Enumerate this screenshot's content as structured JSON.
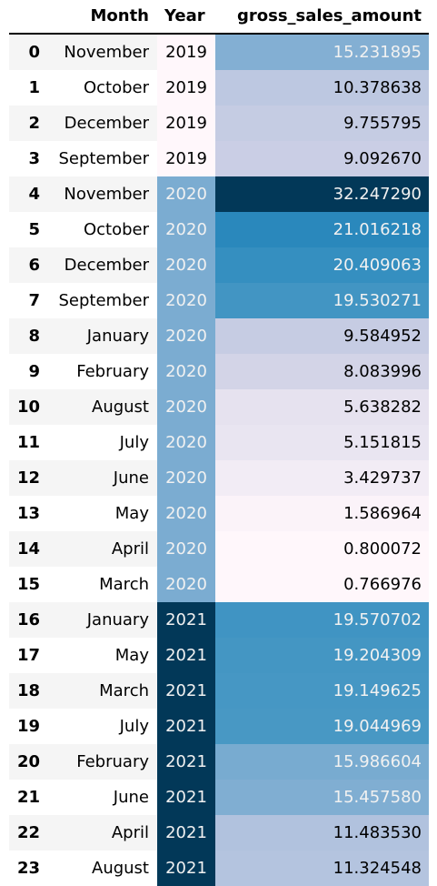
{
  "header": {
    "index": "",
    "month": "Month",
    "year": "Year",
    "gross": "gross_sales_amount"
  },
  "rows": [
    {
      "idx": "0",
      "month": "November",
      "year": "2019",
      "gross": "15.231895",
      "year_bg": "#fff7fb",
      "year_fg": "#000000",
      "gross_bg": "#83afd3",
      "gross_fg": "#f1f1f1"
    },
    {
      "idx": "1",
      "month": "October",
      "year": "2019",
      "gross": "10.378638",
      "year_bg": "#fff7fb",
      "year_fg": "#000000",
      "gross_bg": "#bdc8e1",
      "gross_fg": "#000000"
    },
    {
      "idx": "2",
      "month": "December",
      "year": "2019",
      "gross": "9.755795",
      "year_bg": "#fff7fb",
      "year_fg": "#000000",
      "gross_bg": "#c5cce3",
      "gross_fg": "#000000"
    },
    {
      "idx": "3",
      "month": "September",
      "year": "2019",
      "gross": "9.092670",
      "year_bg": "#fff7fb",
      "year_fg": "#000000",
      "gross_bg": "#cacee5",
      "gross_fg": "#000000"
    },
    {
      "idx": "4",
      "month": "November",
      "year": "2020",
      "gross": "32.247290",
      "year_bg": "#7bacd1",
      "year_fg": "#f1f1f1",
      "gross_bg": "#023858",
      "gross_fg": "#f1f1f1"
    },
    {
      "idx": "5",
      "month": "October",
      "year": "2020",
      "gross": "21.016218",
      "year_bg": "#7bacd1",
      "year_fg": "#f1f1f1",
      "gross_bg": "#2a88bc",
      "gross_fg": "#f1f1f1"
    },
    {
      "idx": "6",
      "month": "December",
      "year": "2020",
      "gross": "20.409063",
      "year_bg": "#7bacd1",
      "year_fg": "#f1f1f1",
      "gross_bg": "#358fc0",
      "gross_fg": "#f1f1f1"
    },
    {
      "idx": "7",
      "month": "September",
      "year": "2020",
      "gross": "19.530271",
      "year_bg": "#7bacd1",
      "year_fg": "#f1f1f1",
      "gross_bg": "#4295c3",
      "gross_fg": "#f1f1f1"
    },
    {
      "idx": "8",
      "month": "January",
      "year": "2020",
      "gross": "9.584952",
      "year_bg": "#7bacd1",
      "year_fg": "#f1f1f1",
      "gross_bg": "#c6cce3",
      "gross_fg": "#000000"
    },
    {
      "idx": "9",
      "month": "February",
      "year": "2020",
      "gross": "8.083996",
      "year_bg": "#7bacd1",
      "year_fg": "#f1f1f1",
      "gross_bg": "#d3d4e7",
      "gross_fg": "#000000"
    },
    {
      "idx": "10",
      "month": "August",
      "year": "2020",
      "gross": "5.638282",
      "year_bg": "#7bacd1",
      "year_fg": "#f1f1f1",
      "gross_bg": "#e6e2ef",
      "gross_fg": "#000000"
    },
    {
      "idx": "11",
      "month": "July",
      "year": "2020",
      "gross": "5.151815",
      "year_bg": "#7bacd1",
      "year_fg": "#f1f1f1",
      "gross_bg": "#e9e5f1",
      "gross_fg": "#000000"
    },
    {
      "idx": "12",
      "month": "June",
      "year": "2020",
      "gross": "3.429737",
      "year_bg": "#7bacd1",
      "year_fg": "#f1f1f1",
      "gross_bg": "#f2ecf5",
      "gross_fg": "#000000"
    },
    {
      "idx": "13",
      "month": "May",
      "year": "2020",
      "gross": "1.586964",
      "year_bg": "#7bacd1",
      "year_fg": "#f1f1f1",
      "gross_bg": "#fbf3f9",
      "gross_fg": "#000000"
    },
    {
      "idx": "14",
      "month": "April",
      "year": "2020",
      "gross": "0.800072",
      "year_bg": "#7bacd1",
      "year_fg": "#f1f1f1",
      "gross_bg": "#fff7fb",
      "gross_fg": "#000000"
    },
    {
      "idx": "15",
      "month": "March",
      "year": "2020",
      "gross": "0.766976",
      "year_bg": "#7bacd1",
      "year_fg": "#f1f1f1",
      "gross_bg": "#fff7fb",
      "gross_fg": "#000000"
    },
    {
      "idx": "16",
      "month": "January",
      "year": "2021",
      "gross": "19.570702",
      "year_bg": "#023858",
      "year_fg": "#f1f1f1",
      "gross_bg": "#4094c3",
      "gross_fg": "#f1f1f1"
    },
    {
      "idx": "17",
      "month": "May",
      "year": "2021",
      "gross": "19.204309",
      "year_bg": "#023858",
      "year_fg": "#f1f1f1",
      "gross_bg": "#4496c3",
      "gross_fg": "#f1f1f1"
    },
    {
      "idx": "18",
      "month": "March",
      "year": "2021",
      "gross": "19.149625",
      "year_bg": "#023858",
      "year_fg": "#f1f1f1",
      "gross_bg": "#4697c4",
      "gross_fg": "#f1f1f1"
    },
    {
      "idx": "19",
      "month": "July",
      "year": "2021",
      "gross": "19.044969",
      "year_bg": "#023858",
      "year_fg": "#f1f1f1",
      "gross_bg": "#4898c4",
      "gross_fg": "#f1f1f1"
    },
    {
      "idx": "20",
      "month": "February",
      "year": "2021",
      "gross": "15.986604",
      "year_bg": "#023858",
      "year_fg": "#f1f1f1",
      "gross_bg": "#78abd0",
      "gross_fg": "#f1f1f1"
    },
    {
      "idx": "21",
      "month": "June",
      "year": "2021",
      "gross": "15.457580",
      "year_bg": "#023858",
      "year_fg": "#f1f1f1",
      "gross_bg": "#80aed2",
      "gross_fg": "#f1f1f1"
    },
    {
      "idx": "22",
      "month": "April",
      "year": "2021",
      "gross": "11.483530",
      "year_bg": "#023858",
      "year_fg": "#f1f1f1",
      "gross_bg": "#b1c2de",
      "gross_fg": "#000000"
    },
    {
      "idx": "23",
      "month": "August",
      "year": "2021",
      "gross": "11.324548",
      "year_bg": "#023858",
      "year_fg": "#f1f1f1",
      "gross_bg": "#b4c4df",
      "gross_fg": "#000000"
    }
  ],
  "colors": {
    "stripe": "#f5f5f5",
    "header_rule": "#000000",
    "text": "#000000",
    "light_text": "#f1f1f1"
  }
}
